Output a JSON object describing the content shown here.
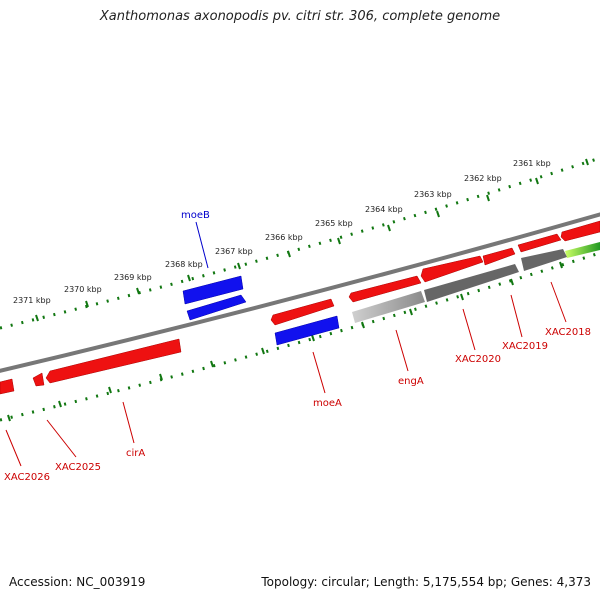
{
  "title": "Xanthomonas axonopodis pv. citri str. 306, complete genome",
  "footer": {
    "accession": "Accession: NC_003919",
    "summary": "Topology: circular; Length: 5,175,554 bp; Genes: 4,373"
  },
  "colors": {
    "forward_gene": "#ee1111",
    "reverse_gene": "#ee1111",
    "rna_gene": "#1111ee",
    "pseudogene": "#666666",
    "label_red": "#cc0000",
    "label_blue": "#0000cc",
    "backbone": "#777777",
    "ticks": "#117711"
  },
  "ticks": [
    {
      "label": "2361 kbp"
    },
    {
      "label": "2362 kbp"
    },
    {
      "label": "2363 kbp"
    },
    {
      "label": "2364 kbp"
    },
    {
      "label": "2365 kbp"
    },
    {
      "label": "2366 kbp"
    },
    {
      "label": "2367 kbp"
    },
    {
      "label": "2368 kbp"
    },
    {
      "label": "2369 kbp"
    },
    {
      "label": "2370 kbp"
    },
    {
      "label": "2371 kbp"
    }
  ],
  "gene_labels": [
    {
      "name": "moeB",
      "color": "blue"
    },
    {
      "name": "XAC2018",
      "color": "red"
    },
    {
      "name": "XAC2019",
      "color": "red"
    },
    {
      "name": "XAC2020",
      "color": "red"
    },
    {
      "name": "engA",
      "color": "red"
    },
    {
      "name": "moeA",
      "color": "red"
    },
    {
      "name": "cirA",
      "color": "red"
    },
    {
      "name": "XAC2025",
      "color": "red"
    },
    {
      "name": "XAC2026",
      "color": "red"
    }
  ]
}
